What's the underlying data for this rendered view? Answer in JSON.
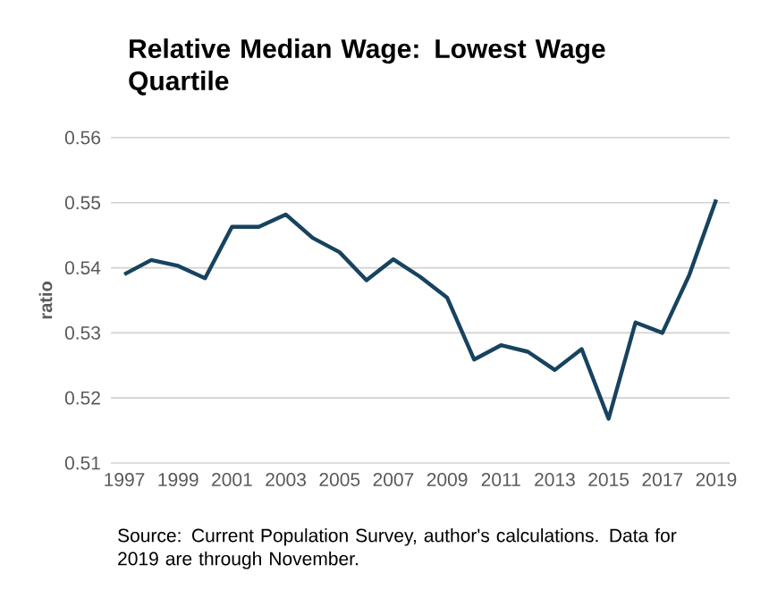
{
  "chart_data": {
    "type": "line",
    "title": "Relative Median Wage: Lowest Wage Quartile",
    "ylabel": "ratio",
    "x": [
      1997,
      1998,
      1999,
      2000,
      2001,
      2002,
      2003,
      2004,
      2005,
      2006,
      2007,
      2008,
      2009,
      2010,
      2011,
      2012,
      2013,
      2014,
      2015,
      2016,
      2017,
      2018,
      2019
    ],
    "series": [
      {
        "color": "#17435f",
        "values": [
          0.539,
          0.5412,
          0.5403,
          0.5384,
          0.5463,
          0.5463,
          0.5482,
          0.5446,
          0.5424,
          0.5381,
          0.5413,
          0.5386,
          0.5354,
          0.5259,
          0.5281,
          0.5271,
          0.5243,
          0.5275,
          0.5168,
          0.5316,
          0.53,
          0.5389,
          0.5505
        ]
      }
    ],
    "xlim": [
      1996.5,
      2019.5
    ],
    "xticks": [
      1997,
      1999,
      2001,
      2003,
      2005,
      2007,
      2009,
      2011,
      2013,
      2015,
      2017,
      2019
    ],
    "ylim": [
      0.51,
      0.56
    ],
    "yticks": [
      0.51,
      0.52,
      0.53,
      0.54,
      0.55,
      0.56
    ],
    "grid": "y",
    "marker": "none",
    "line_style": "solid",
    "annotations": [
      "Source: Current Population Survey, author's calculations. Data for 2019 are through November."
    ]
  }
}
